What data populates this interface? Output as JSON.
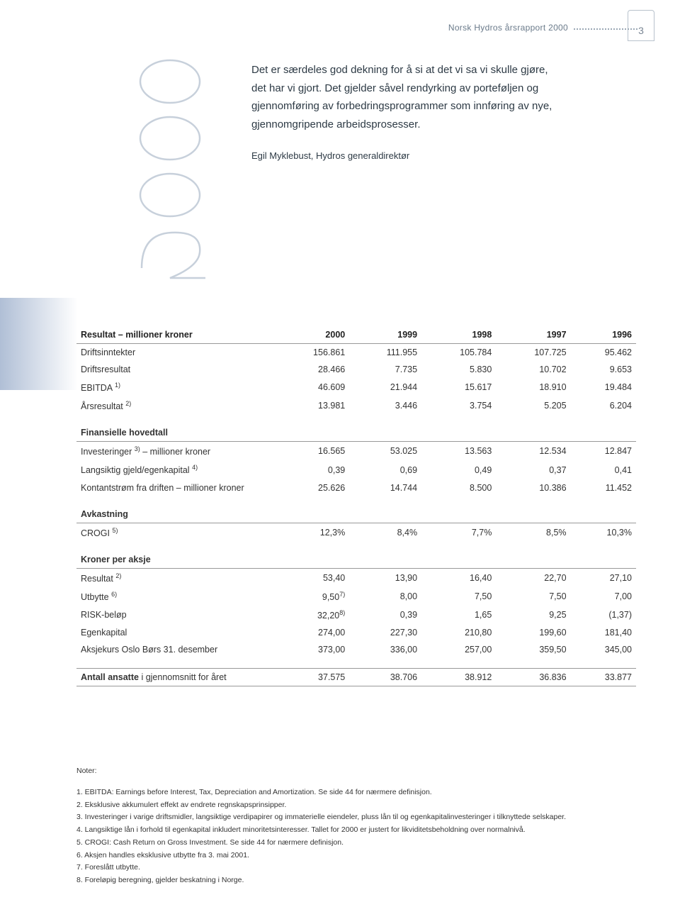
{
  "header": {
    "title": "Norsk Hydros årsrapport 2000",
    "page_number": "3"
  },
  "background_year": "2000",
  "quote": {
    "text": "Det er særdeles god dekning for å si at det vi sa vi skulle gjøre, det har vi gjort. Det gjelder såvel rendyrking av porteføljen og gjennomføring av forbedringsprogrammer som innføring av nye, gjennomgripende arbeidsprosesser.",
    "attribution": "Egil Myklebust, Hydros generaldirektør"
  },
  "table": {
    "years": [
      "2000",
      "1999",
      "1998",
      "1997",
      "1996"
    ],
    "sections": [
      {
        "heading": "Resultat – millioner kroner",
        "is_first": true,
        "rows": [
          {
            "label": "Driftsinntekter",
            "sup": "",
            "values": [
              "156.861",
              "111.955",
              "105.784",
              "107.725",
              "95.462"
            ]
          },
          {
            "label": "Driftsresultat",
            "sup": "",
            "values": [
              "28.466",
              "7.735",
              "5.830",
              "10.702",
              "9.653"
            ]
          },
          {
            "label": "EBITDA ",
            "sup": "1)",
            "values": [
              "46.609",
              "21.944",
              "15.617",
              "18.910",
              "19.484"
            ]
          },
          {
            "label": "Årsresultat ",
            "sup": "2)",
            "values": [
              "13.981",
              "3.446",
              "3.754",
              "5.205",
              "6.204"
            ]
          }
        ]
      },
      {
        "heading": "Finansielle hovedtall",
        "rows": [
          {
            "label": "Investeringer ",
            "sup": "3)",
            "tail": " – millioner kroner",
            "values": [
              "16.565",
              "53.025",
              "13.563",
              "12.534",
              "12.847"
            ]
          },
          {
            "label": "Langsiktig gjeld/egenkapital ",
            "sup": "4)",
            "values": [
              "0,39",
              "0,69",
              "0,49",
              "0,37",
              "0,41"
            ]
          },
          {
            "label": "Kontantstrøm fra driften – millioner kroner",
            "sup": "",
            "values": [
              "25.626",
              "14.744",
              "8.500",
              "10.386",
              "11.452"
            ]
          }
        ]
      },
      {
        "heading": "Avkastning",
        "rows": [
          {
            "label": "CROGI ",
            "sup": "5)",
            "values": [
              "12,3%",
              "8,4%",
              "7,7%",
              "8,5%",
              "10,3%"
            ]
          }
        ]
      },
      {
        "heading": "Kroner per aksje",
        "rows": [
          {
            "label": "Resultat ",
            "sup": "2)",
            "values": [
              "53,40",
              "13,90",
              "16,40",
              "22,70",
              "27,10"
            ]
          },
          {
            "label": "Utbytte ",
            "sup": "6)",
            "values_sup": [
              "7)",
              "",
              "",
              "",
              ""
            ],
            "values": [
              "9,50",
              "8,00",
              "7,50",
              "7,50",
              "7,00"
            ]
          },
          {
            "label": "RISK-beløp",
            "sup": "",
            "values_sup": [
              "8)",
              "",
              "",
              "",
              ""
            ],
            "values": [
              "32,20",
              "0,39",
              "1,65",
              "9,25",
              "(1,37)"
            ]
          },
          {
            "label": "Egenkapital",
            "sup": "",
            "values": [
              "274,00",
              "227,30",
              "210,80",
              "199,60",
              "181,40"
            ]
          },
          {
            "label": "Aksjekurs Oslo Børs 31. desember",
            "sup": "",
            "values": [
              "373,00",
              "336,00",
              "257,00",
              "359,50",
              "345,00"
            ]
          }
        ]
      },
      {
        "heading_standalone": true,
        "rows": [
          {
            "label": "Antall ansatte i gjennomsnitt for året",
            "label_bold_prefix": "Antall ansatte",
            "values": [
              "37.575",
              "38.706",
              "38.912",
              "36.836",
              "33.877"
            ]
          }
        ]
      }
    ]
  },
  "notes": {
    "title": "Noter:",
    "items": [
      "EBITDA: Earnings before Interest, Tax, Depreciation and Amortization. Se side 44 for nærmere definisjon.",
      "Eksklusive akkumulert effekt av endrete regnskapsprinsipper.",
      "Investeringer i varige driftsmidler, langsiktige verdipapirer og immaterielle eiendeler, pluss lån til og egenkapitalinvesteringer i tilknyttede selskaper.",
      "Langsiktige lån i forhold til egenkapital inkludert minoritetsinteresser. Tallet for 2000 er justert for likviditetsbeholdning over normalnivå.",
      "CROGI: Cash Return on Gross Investment. Se side 44 for nærmere definisjon.",
      "Aksjen handles eksklusive utbytte fra 3. mai 2001.",
      "Foreslått utbytte.",
      "Foreløpig beregning, gjelder beskatning i Norge."
    ]
  },
  "colors": {
    "text": "#333333",
    "muted": "#6a7a8a",
    "outline": "#c7d0db",
    "gradient_from": "#b0bfd6",
    "rule": "#999999"
  }
}
